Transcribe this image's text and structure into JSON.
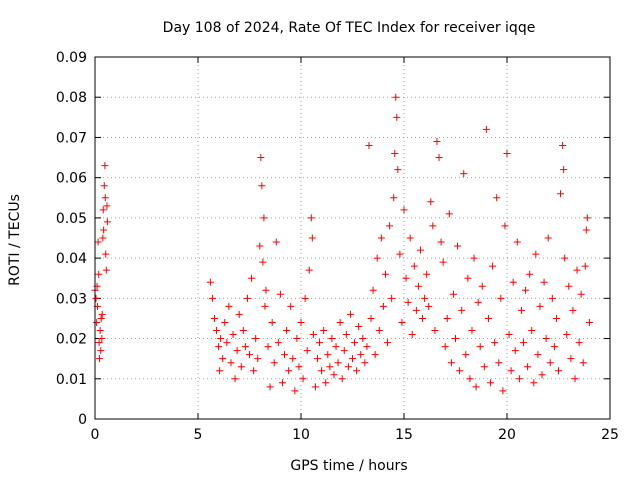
{
  "chart_data": {
    "type": "scatter",
    "title": "Day 108 of 2024, Rate Of TEC Index for receiver iqqe",
    "xlabel": "GPS time / hours",
    "ylabel": "ROTI / TECUs",
    "xlim": [
      0,
      25
    ],
    "ylim": [
      0,
      0.09
    ],
    "grid": true,
    "marker": "+",
    "color": "#ff0000",
    "x_ticks": [
      "0",
      "5",
      "10",
      "15",
      "20",
      "25"
    ],
    "y_ticks": [
      "0",
      "0.01",
      "0.02",
      "0.03",
      "0.04",
      "0.05",
      "0.06",
      "0.07",
      "0.08",
      "0.09"
    ],
    "series": [
      {
        "name": "iqqe",
        "points": [
          [
            0.0,
            0.032
          ],
          [
            0.05,
            0.03
          ],
          [
            0.08,
            0.024
          ],
          [
            0.1,
            0.033
          ],
          [
            0.12,
            0.028
          ],
          [
            0.15,
            0.044
          ],
          [
            0.18,
            0.036
          ],
          [
            0.2,
            0.019
          ],
          [
            0.22,
            0.015
          ],
          [
            0.25,
            0.022
          ],
          [
            0.28,
            0.017
          ],
          [
            0.3,
            0.025
          ],
          [
            0.33,
            0.02
          ],
          [
            0.35,
            0.026
          ],
          [
            0.38,
            0.045
          ],
          [
            0.4,
            0.052
          ],
          [
            0.42,
            0.047
          ],
          [
            0.45,
            0.058
          ],
          [
            0.48,
            0.063
          ],
          [
            0.5,
            0.055
          ],
          [
            0.52,
            0.041
          ],
          [
            0.55,
            0.037
          ],
          [
            0.58,
            0.053
          ],
          [
            0.6,
            0.049
          ],
          [
            5.6,
            0.034
          ],
          [
            5.7,
            0.03
          ],
          [
            5.8,
            0.025
          ],
          [
            5.9,
            0.022
          ],
          [
            6.0,
            0.018
          ],
          [
            6.05,
            0.012
          ],
          [
            6.1,
            0.02
          ],
          [
            6.2,
            0.015
          ],
          [
            6.3,
            0.024
          ],
          [
            6.4,
            0.019
          ],
          [
            6.5,
            0.028
          ],
          [
            6.6,
            0.014
          ],
          [
            6.7,
            0.021
          ],
          [
            6.8,
            0.01
          ],
          [
            6.9,
            0.017
          ],
          [
            7.0,
            0.026
          ],
          [
            7.1,
            0.013
          ],
          [
            7.2,
            0.022
          ],
          [
            7.3,
            0.018
          ],
          [
            7.4,
            0.03
          ],
          [
            7.5,
            0.016
          ],
          [
            7.6,
            0.035
          ],
          [
            7.7,
            0.012
          ],
          [
            7.8,
            0.02
          ],
          [
            7.9,
            0.015
          ],
          [
            8.0,
            0.043
          ],
          [
            8.05,
            0.065
          ],
          [
            8.1,
            0.058
          ],
          [
            8.15,
            0.039
          ],
          [
            8.2,
            0.05
          ],
          [
            8.25,
            0.028
          ],
          [
            8.3,
            0.032
          ],
          [
            8.4,
            0.018
          ],
          [
            8.5,
            0.008
          ],
          [
            8.6,
            0.024
          ],
          [
            8.7,
            0.014
          ],
          [
            8.8,
            0.044
          ],
          [
            8.9,
            0.019
          ],
          [
            9.0,
            0.031
          ],
          [
            9.1,
            0.009
          ],
          [
            9.2,
            0.016
          ],
          [
            9.3,
            0.022
          ],
          [
            9.4,
            0.012
          ],
          [
            9.5,
            0.028
          ],
          [
            9.6,
            0.015
          ],
          [
            9.7,
            0.007
          ],
          [
            9.8,
            0.02
          ],
          [
            9.9,
            0.013
          ],
          [
            10.0,
            0.024
          ],
          [
            10.1,
            0.01
          ],
          [
            10.2,
            0.03
          ],
          [
            10.3,
            0.017
          ],
          [
            10.4,
            0.037
          ],
          [
            10.5,
            0.05
          ],
          [
            10.55,
            0.045
          ],
          [
            10.6,
            0.021
          ],
          [
            10.7,
            0.008
          ],
          [
            10.8,
            0.015
          ],
          [
            10.9,
            0.019
          ],
          [
            11.0,
            0.012
          ],
          [
            11.1,
            0.022
          ],
          [
            11.2,
            0.009
          ],
          [
            11.3,
            0.016
          ],
          [
            11.4,
            0.013
          ],
          [
            11.5,
            0.02
          ],
          [
            11.6,
            0.011
          ],
          [
            11.7,
            0.018
          ],
          [
            11.8,
            0.014
          ],
          [
            11.9,
            0.024
          ],
          [
            12.0,
            0.01
          ],
          [
            12.1,
            0.017
          ],
          [
            12.2,
            0.021
          ],
          [
            12.3,
            0.013
          ],
          [
            12.4,
            0.026
          ],
          [
            12.5,
            0.015
          ],
          [
            12.6,
            0.019
          ],
          [
            12.7,
            0.012
          ],
          [
            12.8,
            0.023
          ],
          [
            12.9,
            0.016
          ],
          [
            13.0,
            0.02
          ],
          [
            13.1,
            0.014
          ],
          [
            13.2,
            0.018
          ],
          [
            13.3,
            0.068
          ],
          [
            13.4,
            0.025
          ],
          [
            13.5,
            0.032
          ],
          [
            13.6,
            0.016
          ],
          [
            13.7,
            0.04
          ],
          [
            13.8,
            0.022
          ],
          [
            13.9,
            0.045
          ],
          [
            14.0,
            0.028
          ],
          [
            14.1,
            0.036
          ],
          [
            14.2,
            0.019
          ],
          [
            14.3,
            0.048
          ],
          [
            14.4,
            0.03
          ],
          [
            14.5,
            0.055
          ],
          [
            14.55,
            0.066
          ],
          [
            14.6,
            0.08
          ],
          [
            14.65,
            0.075
          ],
          [
            14.7,
            0.062
          ],
          [
            14.8,
            0.041
          ],
          [
            14.9,
            0.024
          ],
          [
            15.0,
            0.052
          ],
          [
            15.1,
            0.035
          ],
          [
            15.2,
            0.029
          ],
          [
            15.3,
            0.045
          ],
          [
            15.4,
            0.021
          ],
          [
            15.5,
            0.038
          ],
          [
            15.6,
            0.027
          ],
          [
            15.7,
            0.033
          ],
          [
            15.8,
            0.042
          ],
          [
            15.9,
            0.025
          ],
          [
            16.0,
            0.03
          ],
          [
            16.1,
            0.036
          ],
          [
            16.2,
            0.028
          ],
          [
            16.3,
            0.054
          ],
          [
            16.4,
            0.048
          ],
          [
            16.5,
            0.022
          ],
          [
            16.6,
            0.069
          ],
          [
            16.7,
            0.065
          ],
          [
            16.8,
            0.044
          ],
          [
            16.9,
            0.039
          ],
          [
            17.0,
            0.018
          ],
          [
            17.1,
            0.025
          ],
          [
            17.2,
            0.051
          ],
          [
            17.3,
            0.014
          ],
          [
            17.4,
            0.031
          ],
          [
            17.5,
            0.02
          ],
          [
            17.6,
            0.043
          ],
          [
            17.7,
            0.012
          ],
          [
            17.8,
            0.027
          ],
          [
            17.9,
            0.061
          ],
          [
            18.0,
            0.016
          ],
          [
            18.1,
            0.035
          ],
          [
            18.2,
            0.01
          ],
          [
            18.3,
            0.022
          ],
          [
            18.4,
            0.04
          ],
          [
            18.5,
            0.008
          ],
          [
            18.6,
            0.029
          ],
          [
            18.7,
            0.018
          ],
          [
            18.8,
            0.033
          ],
          [
            18.9,
            0.013
          ],
          [
            19.0,
            0.072
          ],
          [
            19.1,
            0.025
          ],
          [
            19.2,
            0.009
          ],
          [
            19.3,
            0.038
          ],
          [
            19.4,
            0.019
          ],
          [
            19.5,
            0.055
          ],
          [
            19.6,
            0.014
          ],
          [
            19.7,
            0.03
          ],
          [
            19.8,
            0.007
          ],
          [
            19.9,
            0.048
          ],
          [
            20.0,
            0.066
          ],
          [
            20.1,
            0.021
          ],
          [
            20.2,
            0.012
          ],
          [
            20.3,
            0.034
          ],
          [
            20.4,
            0.017
          ],
          [
            20.5,
            0.044
          ],
          [
            20.6,
            0.01
          ],
          [
            20.7,
            0.027
          ],
          [
            20.8,
            0.019
          ],
          [
            20.9,
            0.032
          ],
          [
            21.0,
            0.013
          ],
          [
            21.1,
            0.036
          ],
          [
            21.2,
            0.022
          ],
          [
            21.3,
            0.009
          ],
          [
            21.4,
            0.041
          ],
          [
            21.5,
            0.016
          ],
          [
            21.6,
            0.028
          ],
          [
            21.7,
            0.011
          ],
          [
            21.8,
            0.034
          ],
          [
            21.9,
            0.02
          ],
          [
            22.0,
            0.045
          ],
          [
            22.1,
            0.014
          ],
          [
            22.2,
            0.03
          ],
          [
            22.3,
            0.018
          ],
          [
            22.4,
            0.025
          ],
          [
            22.5,
            0.012
          ],
          [
            22.6,
            0.056
          ],
          [
            22.7,
            0.068
          ],
          [
            22.75,
            0.062
          ],
          [
            22.8,
            0.04
          ],
          [
            22.9,
            0.021
          ],
          [
            23.0,
            0.033
          ],
          [
            23.1,
            0.015
          ],
          [
            23.2,
            0.027
          ],
          [
            23.3,
            0.01
          ],
          [
            23.4,
            0.037
          ],
          [
            23.5,
            0.019
          ],
          [
            23.6,
            0.031
          ],
          [
            23.7,
            0.014
          ],
          [
            23.8,
            0.038
          ],
          [
            23.85,
            0.047
          ],
          [
            23.9,
            0.05
          ],
          [
            24.0,
            0.024
          ]
        ]
      }
    ]
  }
}
